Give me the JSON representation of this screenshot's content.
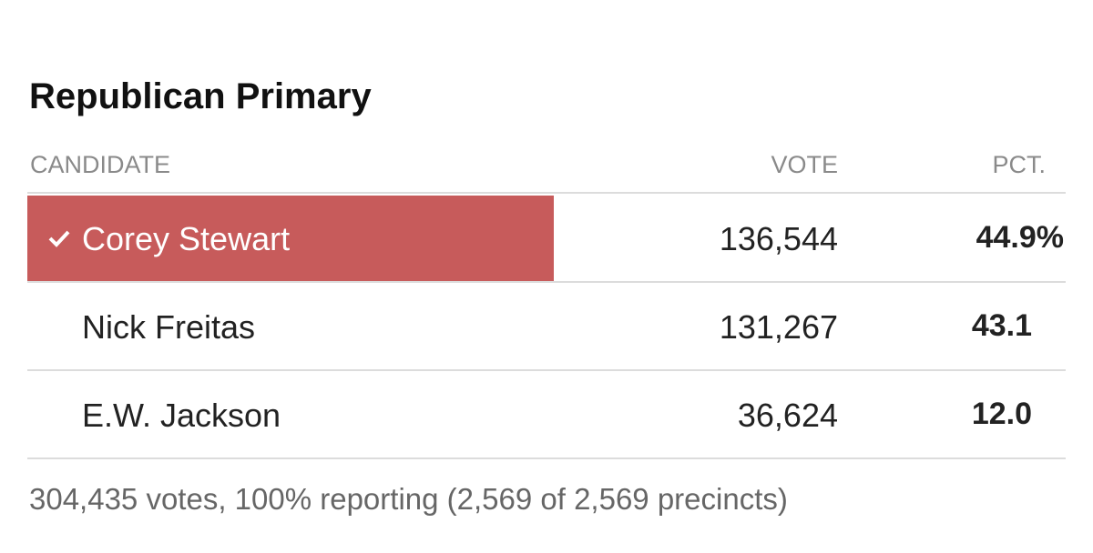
{
  "title": "Republican Primary",
  "table": {
    "headers": [
      "CANDIDATE",
      "VOTE",
      "PCT."
    ],
    "rows": [
      [
        "Corey Stewart",
        "136,544",
        "44.9%"
      ],
      [
        "Nick Freitas",
        "131,267",
        "43.1"
      ],
      [
        "E.W. Jackson",
        "36,624",
        "12.0"
      ]
    ]
  },
  "footer": "304,435 votes, 100% reporting (2,569 of 2,569 precincts)"
}
